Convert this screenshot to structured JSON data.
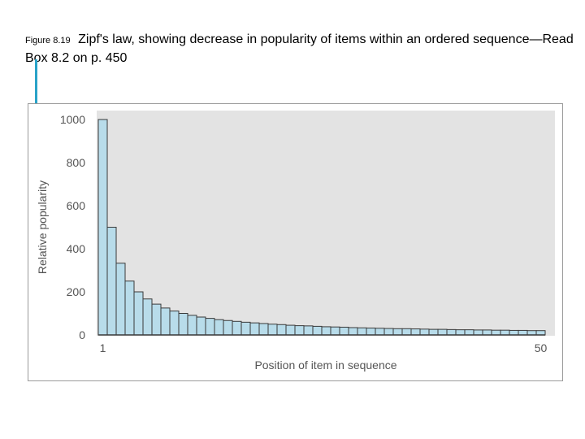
{
  "caption": {
    "figure_label": "Figure 8.19",
    "text": "Zipf's law, showing decrease in popularity of items within an ordered sequence—Read Box 8.2 on p. 450"
  },
  "colors": {
    "accent": "#29a3c8",
    "plot_background": "#e3e3e3",
    "bar_fill": "#b8dcea",
    "bar_stroke": "#3a3a3a",
    "axis_text": "#555555"
  },
  "chart_data": {
    "type": "bar",
    "title": "",
    "xlabel": "Position of item in sequence",
    "ylabel": "Relative popularity",
    "x": [
      1,
      2,
      3,
      4,
      5,
      6,
      7,
      8,
      9,
      10,
      11,
      12,
      13,
      14,
      15,
      16,
      17,
      18,
      19,
      20,
      21,
      22,
      23,
      24,
      25,
      26,
      27,
      28,
      29,
      30,
      31,
      32,
      33,
      34,
      35,
      36,
      37,
      38,
      39,
      40,
      41,
      42,
      43,
      44,
      45,
      46,
      47,
      48,
      49,
      50
    ],
    "values": [
      1000,
      500,
      333,
      250,
      200,
      167,
      143,
      125,
      111,
      100,
      91,
      83,
      77,
      71,
      67,
      63,
      59,
      56,
      53,
      50,
      48,
      45,
      43,
      42,
      40,
      38,
      37,
      36,
      34,
      33,
      32,
      31,
      30,
      29,
      29,
      28,
      27,
      26,
      26,
      25,
      24,
      24,
      23,
      23,
      22,
      22,
      21,
      21,
      20,
      20
    ],
    "x_tick_labels": [
      "1",
      "50"
    ],
    "y_ticks": [
      0,
      200,
      400,
      600,
      800,
      1000
    ],
    "ylim": [
      0,
      1000
    ],
    "grid": false
  }
}
